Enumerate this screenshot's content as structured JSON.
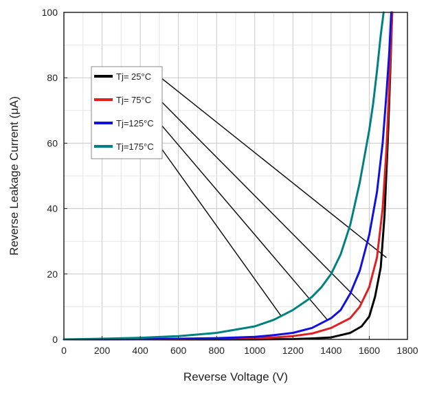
{
  "chart_data": {
    "type": "line",
    "title": "",
    "xlabel": "Reverse Voltage (V)",
    "ylabel": "Reverse Leakage Current (μA)",
    "xlim": [
      0,
      1800
    ],
    "ylim": [
      0,
      100
    ],
    "xticks": [
      0,
      200,
      400,
      600,
      800,
      1000,
      1200,
      1400,
      1600,
      1800
    ],
    "yticks": [
      0,
      20,
      40,
      60,
      80,
      100
    ],
    "grid": true,
    "legend_placement": "upper-left",
    "series": [
      {
        "name": "Tj= 25°C",
        "color": "#000000",
        "x": [
          0,
          200,
          400,
          600,
          800,
          1000,
          1200,
          1300,
          1400,
          1500,
          1560,
          1600,
          1630,
          1660,
          1680,
          1700,
          1710,
          1720
        ],
        "y": [
          0,
          0,
          0,
          0,
          0,
          0,
          0.1,
          0.3,
          0.6,
          2,
          4,
          7,
          13,
          22,
          38,
          65,
          82,
          100
        ]
      },
      {
        "name": "Tj= 75°C",
        "color": "#e02020",
        "x": [
          0,
          200,
          400,
          600,
          800,
          1000,
          1100,
          1200,
          1300,
          1400,
          1500,
          1550,
          1600,
          1640,
          1670,
          1690,
          1705,
          1720
        ],
        "y": [
          0,
          0,
          0,
          0.1,
          0.2,
          0.4,
          0.6,
          1,
          1.8,
          3.5,
          6.5,
          10,
          16,
          25,
          40,
          58,
          78,
          100
        ]
      },
      {
        "name": "Tj=125°C",
        "color": "#1010e0",
        "x": [
          0,
          200,
          400,
          600,
          800,
          1000,
          1100,
          1200,
          1300,
          1400,
          1450,
          1500,
          1550,
          1600,
          1640,
          1670,
          1690,
          1705,
          1715
        ],
        "y": [
          0,
          0,
          0.1,
          0.2,
          0.4,
          0.8,
          1.3,
          2,
          3.5,
          6.5,
          9,
          14,
          21,
          32,
          45,
          60,
          75,
          88,
          100
        ]
      },
      {
        "name": "Tj=175°C",
        "color": "#008080",
        "x": [
          0,
          200,
          400,
          600,
          800,
          1000,
          1100,
          1200,
          1300,
          1350,
          1400,
          1450,
          1500,
          1550,
          1600,
          1620,
          1640,
          1660,
          1675
        ],
        "y": [
          0,
          0.2,
          0.5,
          1,
          2,
          4,
          6,
          9,
          13,
          16,
          20,
          26,
          35,
          48,
          64,
          72,
          82,
          93,
          100
        ]
      }
    ],
    "legend_pointers": [
      {
        "series": "Tj= 25°C",
        "to_x": 1690,
        "to_y": 25
      },
      {
        "series": "Tj= 75°C",
        "to_x": 1560,
        "to_y": 11
      },
      {
        "series": "Tj=125°C",
        "to_x": 1380,
        "to_y": 6
      },
      {
        "series": "Tj=175°C",
        "to_x": 1140,
        "to_y": 7
      }
    ]
  }
}
